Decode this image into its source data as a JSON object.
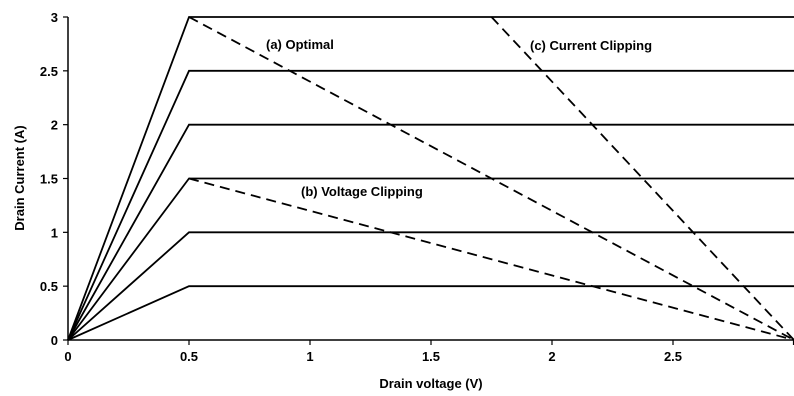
{
  "chart_data": {
    "type": "line",
    "title": "",
    "xlabel": "Drain voltage (V)",
    "ylabel": "Drain Current (A)",
    "xlim": [
      0,
      3
    ],
    "ylim": [
      0,
      3
    ],
    "xticks": [
      0,
      0.5,
      1,
      1.5,
      2,
      2.5
    ],
    "xtick_labels": [
      "0",
      "0.5",
      "1",
      "1.5",
      "2",
      "2.5"
    ],
    "yticks": [
      0,
      0.5,
      1,
      1.5,
      2,
      2.5,
      3
    ],
    "ytick_labels": [
      "0",
      "0.5",
      "1",
      "1.5",
      "2",
      "2.5",
      "3"
    ],
    "grid": false,
    "legend": "none",
    "iv_curves": [
      {
        "knee_v": 0.5,
        "current": 0.5,
        "v_end": 3
      },
      {
        "knee_v": 0.5,
        "current": 1.0,
        "v_end": 3
      },
      {
        "knee_v": 0.5,
        "current": 1.5,
        "v_end": 3
      },
      {
        "knee_v": 0.5,
        "current": 2.0,
        "v_end": 3
      },
      {
        "knee_v": 0.5,
        "current": 2.5,
        "v_end": 3
      },
      {
        "knee_v": 0.5,
        "current": 3.0,
        "v_end": 3
      }
    ],
    "load_lines": [
      {
        "label": "(a) Optimal",
        "points": [
          [
            0.5,
            3.0
          ],
          [
            3.0,
            0
          ]
        ],
        "style": "dashed"
      },
      {
        "label": "(b) Voltage Clipping",
        "points": [
          [
            0.5,
            1.5
          ],
          [
            3.0,
            0
          ]
        ],
        "style": "dashed"
      },
      {
        "label": "(c) Current Clipping",
        "points": [
          [
            1.75,
            3.0
          ],
          [
            3.0,
            0
          ]
        ],
        "style": "dashed"
      }
    ],
    "colors": {
      "line": "#000000"
    }
  }
}
